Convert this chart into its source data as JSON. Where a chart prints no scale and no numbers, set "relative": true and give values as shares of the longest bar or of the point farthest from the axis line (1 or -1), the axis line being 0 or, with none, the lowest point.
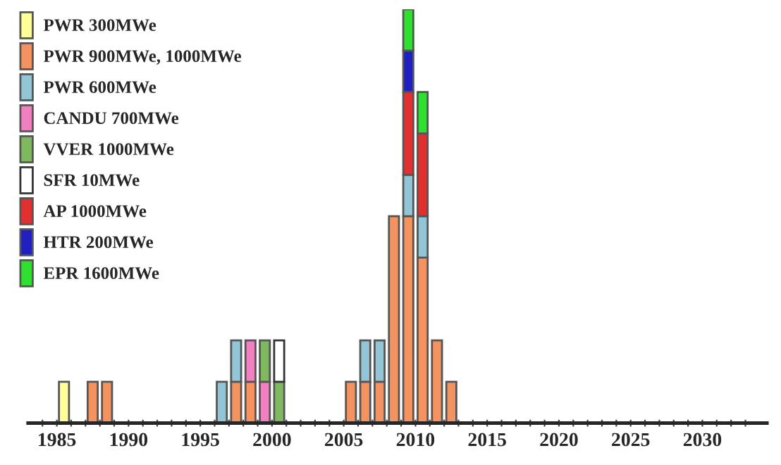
{
  "chart_data": {
    "type": "bar",
    "stacked": true,
    "relative": true,
    "legend": "top left",
    "grid": false,
    "x": [
      1985.5,
      1987.5,
      1988.5,
      1996.5,
      1997.5,
      1998.5,
      1999.5,
      2000.5,
      2005.5,
      2006.5,
      2007.5,
      2008.5,
      2009.5,
      2010.5,
      2011.5,
      2012.5
    ],
    "xlim": [
      1983,
      2034.5
    ],
    "xticks": [
      {
        "value": 1984,
        "label": null
      },
      1985,
      {
        "value": 1986,
        "label": null
      },
      {
        "value": 1987,
        "label": null
      },
      {
        "value": 1988,
        "label": null
      },
      {
        "value": 1989,
        "label": null
      },
      1990,
      {
        "value": 1991,
        "label": null
      },
      {
        "value": 1992,
        "label": null
      },
      {
        "value": 1993,
        "label": null
      },
      {
        "value": 1994,
        "label": null
      },
      1995,
      {
        "value": 1996,
        "label": null
      },
      {
        "value": 1997,
        "label": null
      },
      {
        "value": 1998,
        "label": null
      },
      {
        "value": 1999,
        "label": null
      },
      2000,
      {
        "value": 2001,
        "label": null
      },
      {
        "value": 2002,
        "label": null
      },
      {
        "value": 2003,
        "label": null
      },
      {
        "value": 2004,
        "label": null
      },
      2005,
      {
        "value": 2006,
        "label": null
      },
      {
        "value": 2007,
        "label": null
      },
      {
        "value": 2008,
        "label": null
      },
      {
        "value": 2009,
        "label": null
      },
      2010,
      {
        "value": 2011,
        "label": null
      },
      {
        "value": 2012,
        "label": null
      },
      {
        "value": 2013,
        "label": null
      },
      {
        "value": 2014,
        "label": null
      },
      2015,
      {
        "value": 2016,
        "label": null
      },
      {
        "value": 2017,
        "label": null
      },
      {
        "value": 2018,
        "label": null
      },
      {
        "value": 2019,
        "label": null
      },
      2020,
      {
        "value": 2021,
        "label": null
      },
      {
        "value": 2022,
        "label": null
      },
      {
        "value": 2023,
        "label": null
      },
      {
        "value": 2024,
        "label": null
      },
      2025,
      {
        "value": 2026,
        "label": null
      },
      {
        "value": 2027,
        "label": null
      },
      {
        "value": 2028,
        "label": null
      },
      {
        "value": 2029,
        "label": null
      },
      2030,
      {
        "value": 2031,
        "label": null
      },
      {
        "value": 2032,
        "label": null
      },
      {
        "value": 2033,
        "label": null
      }
    ],
    "series": [
      {
        "name": "PWR 300MWe",
        "color": "#ffff99",
        "values": [
          0.1,
          0,
          0,
          0,
          0,
          0,
          0,
          0,
          0,
          0,
          0,
          0,
          0,
          0,
          0,
          0
        ]
      },
      {
        "name": "PWR 900MWe, 1000MWe",
        "color": "#f4935f",
        "values": [
          0,
          0.1,
          0.1,
          0,
          0.1,
          0.1,
          0,
          0,
          0.1,
          0.1,
          0.1,
          0.5,
          0.5,
          0.4,
          0.2,
          0.1
        ]
      },
      {
        "name": "PWR 600MWe",
        "color": "#92c5d6",
        "values": [
          0,
          0,
          0,
          0.1,
          0.1,
          0,
          0,
          0,
          0,
          0.1,
          0.1,
          0,
          0.1,
          0.1,
          0,
          0
        ]
      },
      {
        "name": "CANDU 700MWe",
        "color": "#f080c0",
        "values": [
          0,
          0,
          0,
          0,
          0,
          0.1,
          0.1,
          0,
          0,
          0,
          0,
          0,
          0,
          0,
          0,
          0
        ]
      },
      {
        "name": "VVER 1000MWe",
        "color": "#80b860",
        "values": [
          0,
          0,
          0,
          0,
          0,
          0,
          0.1,
          0.1,
          0,
          0,
          0,
          0,
          0,
          0,
          0,
          0
        ]
      },
      {
        "name": "SFR 10MWe",
        "color": "#ffffff",
        "values": [
          0,
          0,
          0,
          0,
          0,
          0,
          0,
          0.1,
          0,
          0,
          0,
          0,
          0,
          0,
          0,
          0
        ]
      },
      {
        "name": "AP 1000MWe",
        "color": "#e03030",
        "values": [
          0,
          0,
          0,
          0,
          0,
          0,
          0,
          0,
          0,
          0,
          0,
          0,
          0.2,
          0.2,
          0,
          0
        ]
      },
      {
        "name": "HTR 200MWe",
        "color": "#2020c0",
        "values": [
          0,
          0,
          0,
          0,
          0,
          0,
          0,
          0,
          0,
          0,
          0,
          0,
          0.1,
          0,
          0,
          0
        ]
      },
      {
        "name": "EPR 1600MWe",
        "color": "#30e030",
        "values": [
          0,
          0,
          0,
          0,
          0,
          0,
          0,
          0,
          0,
          0,
          0,
          0,
          0.1,
          0.1,
          0,
          0
        ]
      }
    ]
  }
}
